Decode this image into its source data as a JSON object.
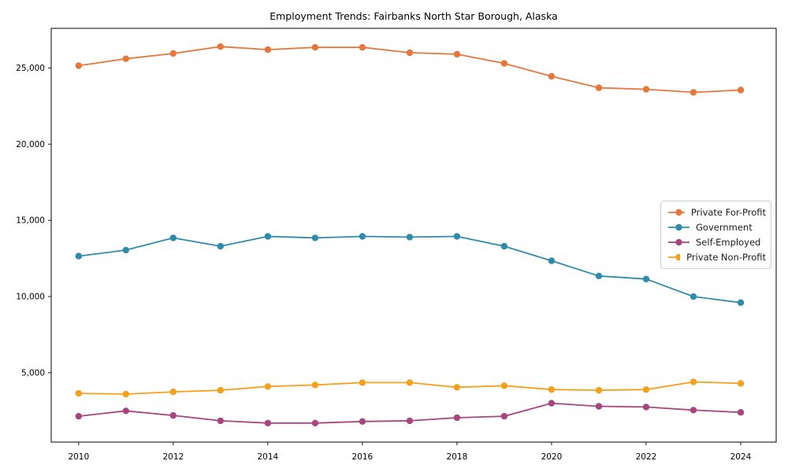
{
  "figure": {
    "title": "Employment Trends: Fairbanks North Star Borough, Alaska"
  },
  "chart_data": {
    "type": "line",
    "title": "Employment Trends: Fairbanks North Star Borough, Alaska",
    "xlabel": "",
    "ylabel": "",
    "x": [
      2010,
      2011,
      2012,
      2013,
      2014,
      2015,
      2016,
      2017,
      2018,
      2019,
      2020,
      2021,
      2022,
      2023,
      2024
    ],
    "series": [
      {
        "name": "Private For-Profit",
        "color": "#E6763C",
        "values": [
          25150,
          25600,
          25950,
          26400,
          26200,
          26350,
          26350,
          26000,
          25900,
          25300,
          24450,
          23700,
          23600,
          23400,
          23550
        ]
      },
      {
        "name": "Government",
        "color": "#2E8BAB",
        "values": [
          12650,
          13050,
          13850,
          13300,
          13950,
          13850,
          13950,
          13900,
          13950,
          13300,
          12350,
          11350,
          11150,
          10000,
          9600
        ]
      },
      {
        "name": "Self-Employed",
        "color": "#A6457E",
        "values": [
          2150,
          2500,
          2200,
          1850,
          1700,
          1700,
          1800,
          1850,
          2050,
          2150,
          3000,
          2800,
          2750,
          2550,
          2400
        ]
      },
      {
        "name": "Private Non-Profit",
        "color": "#F4A01C",
        "values": [
          3650,
          3600,
          3750,
          3850,
          4100,
          4200,
          4350,
          4350,
          4050,
          4150,
          3900,
          3850,
          3900,
          4400,
          4300
        ]
      }
    ],
    "xlim": [
      2009.42,
      2024.75
    ],
    "ylim": [
      450,
      27600
    ],
    "x_ticks": [
      2010,
      2012,
      2014,
      2016,
      2018,
      2020,
      2022,
      2024
    ],
    "x_tick_labels": [
      "2010",
      "2012",
      "2014",
      "2016",
      "2018",
      "2020",
      "2022",
      "2024"
    ],
    "y_ticks": [
      5000,
      10000,
      15000,
      20000,
      25000
    ],
    "y_tick_labels": [
      "5,000",
      "10,000",
      "15,000",
      "20,000",
      "25,000"
    ],
    "grid": false,
    "legend_position": "center right",
    "legend_labels": [
      "Private For-Profit",
      "Government",
      "Self-Employed",
      "Private Non-Profit"
    ],
    "axis_color": "#000000",
    "background": "#ffffff"
  }
}
